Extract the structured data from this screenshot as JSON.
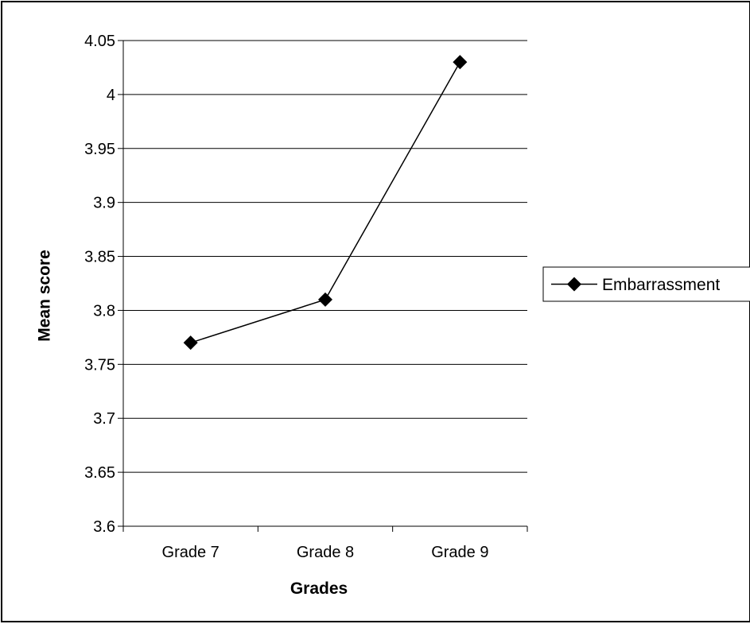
{
  "chart_data": {
    "type": "line",
    "categories": [
      "Grade 7",
      "Grade 8",
      "Grade 9"
    ],
    "series": [
      {
        "name": "Embarrassment",
        "values": [
          3.77,
          3.81,
          4.03
        ],
        "color": "#000000",
        "marker": "diamond"
      }
    ],
    "title": "",
    "xlabel": "Grades",
    "ylabel": "Mean score",
    "ylim": [
      3.6,
      4.05
    ],
    "yticks": [
      "3.6",
      "3.65",
      "3.7",
      "3.75",
      "3.8",
      "3.85",
      "3.9",
      "3.95",
      "4",
      "4.05"
    ],
    "grid": "horizontal",
    "legend": "right"
  }
}
